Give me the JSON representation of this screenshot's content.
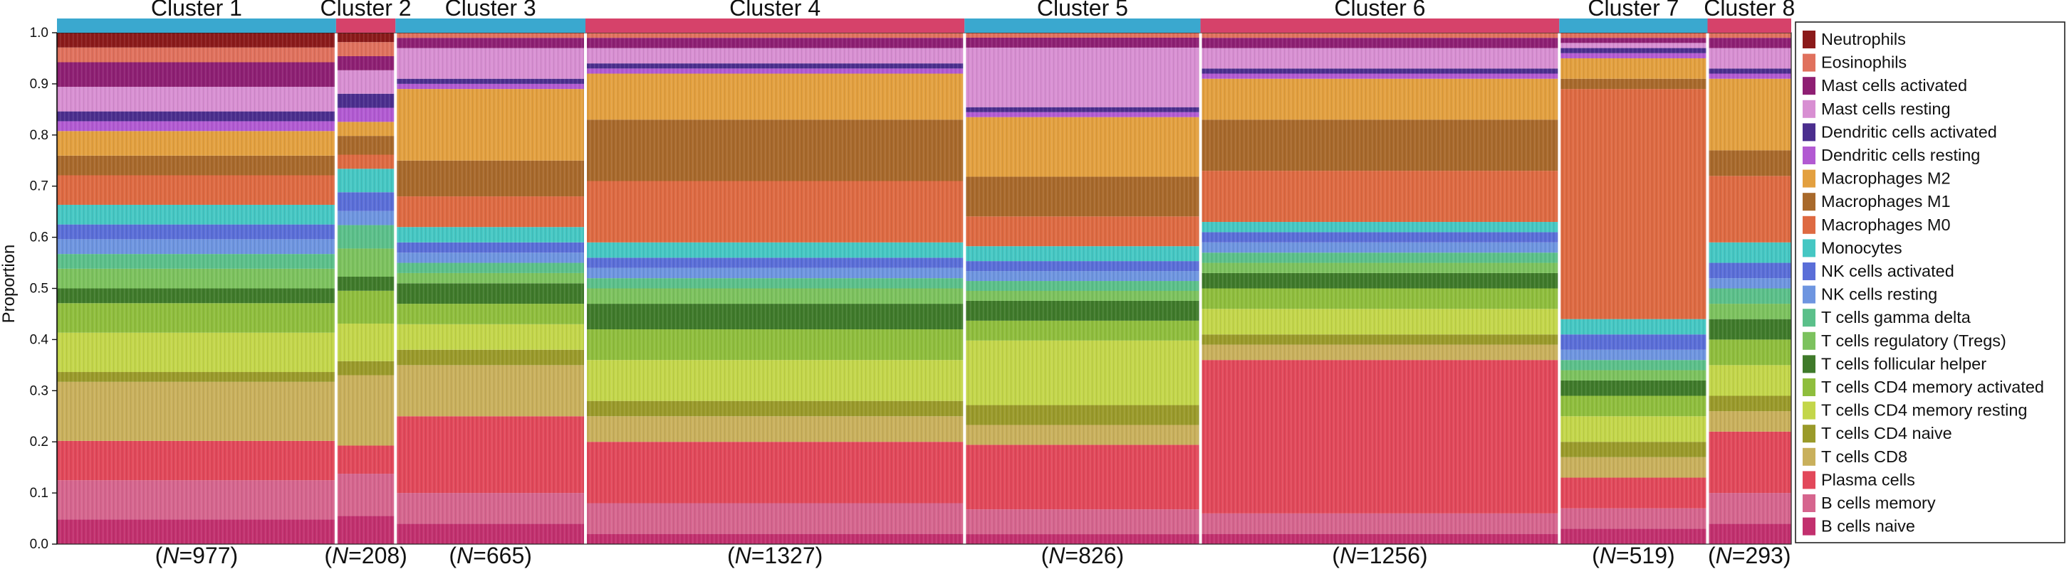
{
  "chart_data": {
    "type": "bar",
    "subtype": "stacked-100-percent",
    "ylabel": "Proportion",
    "xlabel": "",
    "ylim": [
      0,
      1
    ],
    "yticks": [
      "0.0",
      "0.1",
      "0.2",
      "0.3",
      "0.4",
      "0.5",
      "0.6",
      "0.7",
      "0.8",
      "0.9",
      "1.0"
    ],
    "grid": false,
    "legend_position": "right",
    "clusters": [
      {
        "label": "Cluster 1",
        "n_prefix": "(",
        "n_symbol": "N",
        "n_text": "=977)",
        "n": 977,
        "bar_color": "#3aa8cf",
        "proportions": [
          0.03,
          0.03,
          0.05,
          0.05,
          0.02,
          0.02,
          0.05,
          0.04,
          0.06,
          0.04,
          0.03,
          0.03,
          0.03,
          0.04,
          0.03,
          0.06,
          0.08,
          0.02,
          0.12,
          0.08,
          0.08,
          0.05
        ]
      },
      {
        "label": "Cluster 2",
        "n_prefix": "(",
        "n_symbol": "N",
        "n_text": "=208)",
        "n": 208,
        "bar_color": "#d6426a",
        "proportions": [
          0.02,
          0.03,
          0.03,
          0.05,
          0.03,
          0.03,
          0.03,
          0.04,
          0.03,
          0.05,
          0.04,
          0.03,
          0.05,
          0.06,
          0.03,
          0.07,
          0.08,
          0.03,
          0.15,
          0.06,
          0.09,
          0.06
        ]
      },
      {
        "label": "Cluster 3",
        "n_prefix": "(",
        "n_symbol": "N",
        "n_text": "=665)",
        "n": 665,
        "bar_color": "#3aa8cf",
        "proportions": [
          0.0,
          0.01,
          0.02,
          0.06,
          0.01,
          0.01,
          0.14,
          0.07,
          0.06,
          0.03,
          0.02,
          0.02,
          0.02,
          0.02,
          0.04,
          0.04,
          0.05,
          0.03,
          0.1,
          0.15,
          0.06,
          0.04
        ]
      },
      {
        "label": "Cluster 4",
        "n_prefix": "(",
        "n_symbol": "N",
        "n_text": "=1327)",
        "n": 1327,
        "bar_color": "#d6426a",
        "proportions": [
          0.0,
          0.01,
          0.02,
          0.03,
          0.01,
          0.01,
          0.09,
          0.12,
          0.12,
          0.03,
          0.02,
          0.02,
          0.02,
          0.03,
          0.05,
          0.06,
          0.08,
          0.03,
          0.05,
          0.12,
          0.06,
          0.02
        ]
      },
      {
        "label": "Cluster 5",
        "n_prefix": "(",
        "n_symbol": "N",
        "n_text": "=826)",
        "n": 826,
        "bar_color": "#3aa8cf",
        "proportions": [
          0.0,
          0.01,
          0.02,
          0.12,
          0.01,
          0.01,
          0.12,
          0.08,
          0.06,
          0.03,
          0.02,
          0.02,
          0.02,
          0.02,
          0.04,
          0.04,
          0.13,
          0.04,
          0.04,
          0.13,
          0.05,
          0.02
        ]
      },
      {
        "label": "Cluster 6",
        "n_prefix": "(",
        "n_symbol": "N",
        "n_text": "=1256)",
        "n": 1256,
        "bar_color": "#d6426a",
        "proportions": [
          0.0,
          0.01,
          0.02,
          0.04,
          0.01,
          0.01,
          0.08,
          0.1,
          0.1,
          0.02,
          0.02,
          0.02,
          0.02,
          0.02,
          0.03,
          0.04,
          0.05,
          0.02,
          0.03,
          0.3,
          0.04,
          0.02
        ]
      },
      {
        "label": "Cluster 7",
        "n_prefix": "(",
        "n_symbol": "N",
        "n_text": "=519)",
        "n": 519,
        "bar_color": "#3aa8cf",
        "proportions": [
          0.0,
          0.01,
          0.01,
          0.01,
          0.01,
          0.01,
          0.04,
          0.02,
          0.45,
          0.03,
          0.03,
          0.02,
          0.02,
          0.02,
          0.03,
          0.04,
          0.05,
          0.03,
          0.04,
          0.06,
          0.04,
          0.03
        ]
      },
      {
        "label": "Cluster 8",
        "n_prefix": "(",
        "n_symbol": "N",
        "n_text": "=293)",
        "n": 293,
        "bar_color": "#d6426a",
        "proportions": [
          0.0,
          0.01,
          0.02,
          0.04,
          0.01,
          0.01,
          0.14,
          0.05,
          0.13,
          0.04,
          0.03,
          0.02,
          0.03,
          0.03,
          0.04,
          0.05,
          0.06,
          0.03,
          0.04,
          0.12,
          0.06,
          0.04
        ]
      }
    ],
    "series": [
      {
        "name": "Neutrophils",
        "color": "#8b1a1a"
      },
      {
        "name": "Eosinophils",
        "color": "#e0715d"
      },
      {
        "name": "Mast cells activated",
        "color": "#8e1f73"
      },
      {
        "name": "Mast cells resting",
        "color": "#d88fd2"
      },
      {
        "name": "Dendritic cells activated",
        "color": "#4b2e8e"
      },
      {
        "name": "Dendritic cells resting",
        "color": "#b25ad2"
      },
      {
        "name": "Macrophages M2",
        "color": "#e3a03f"
      },
      {
        "name": "Macrophages M1",
        "color": "#a8692b"
      },
      {
        "name": "Macrophages M0",
        "color": "#de6a42"
      },
      {
        "name": "Monocytes",
        "color": "#45c7c3"
      },
      {
        "name": "NK cells activated",
        "color": "#5a6ed8"
      },
      {
        "name": "NK cells resting",
        "color": "#6e95e0"
      },
      {
        "name": "T cells gamma delta",
        "color": "#5bc08a"
      },
      {
        "name": "T cells regulatory (Tregs)",
        "color": "#7cc25e"
      },
      {
        "name": "T cells follicular helper",
        "color": "#3f7a2a"
      },
      {
        "name": "T cells CD4 memory activated",
        "color": "#8fbe3d"
      },
      {
        "name": "T cells CD4 memory resting",
        "color": "#c3d64a"
      },
      {
        "name": "T cells CD4 naive",
        "color": "#9a9a2a"
      },
      {
        "name": "T cells CD8",
        "color": "#c9b05c"
      },
      {
        "name": "Plasma cells",
        "color": "#e2485a"
      },
      {
        "name": "B cells memory",
        "color": "#d6658e"
      },
      {
        "name": "B cells naive",
        "color": "#c2306e"
      }
    ]
  }
}
